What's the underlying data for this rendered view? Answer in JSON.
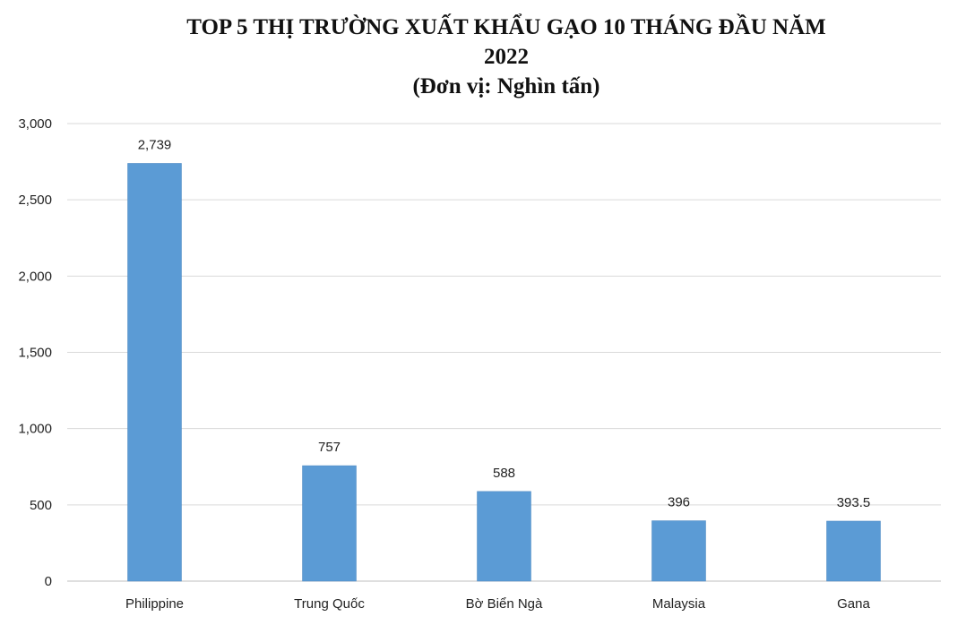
{
  "chart_data": {
    "type": "bar",
    "title_lines": [
      "TOP 5 THỊ TRƯỜNG XUẤT KHẨU GẠO 10 THÁNG ĐẦU NĂM",
      "2022",
      "(Đơn vị: Nghìn tấn)"
    ],
    "categories": [
      "Philippine",
      "Trung Quốc",
      "Bờ Biển Ngà",
      "Malaysia",
      "Gana"
    ],
    "values": [
      2739,
      757,
      588,
      396,
      393.5
    ],
    "value_labels": [
      "2,739",
      "757",
      "588",
      "396",
      "393.5"
    ],
    "ylim": [
      0,
      3000
    ],
    "y_ticks": [
      0,
      500,
      1000,
      1500,
      2000,
      2500,
      3000
    ],
    "y_tick_labels": [
      "0",
      "500",
      "1,000",
      "1,500",
      "2,000",
      "2,500",
      "3,000"
    ],
    "grid": true,
    "bar_color": "#5b9bd5",
    "grid_color": "#d9d9d9"
  }
}
